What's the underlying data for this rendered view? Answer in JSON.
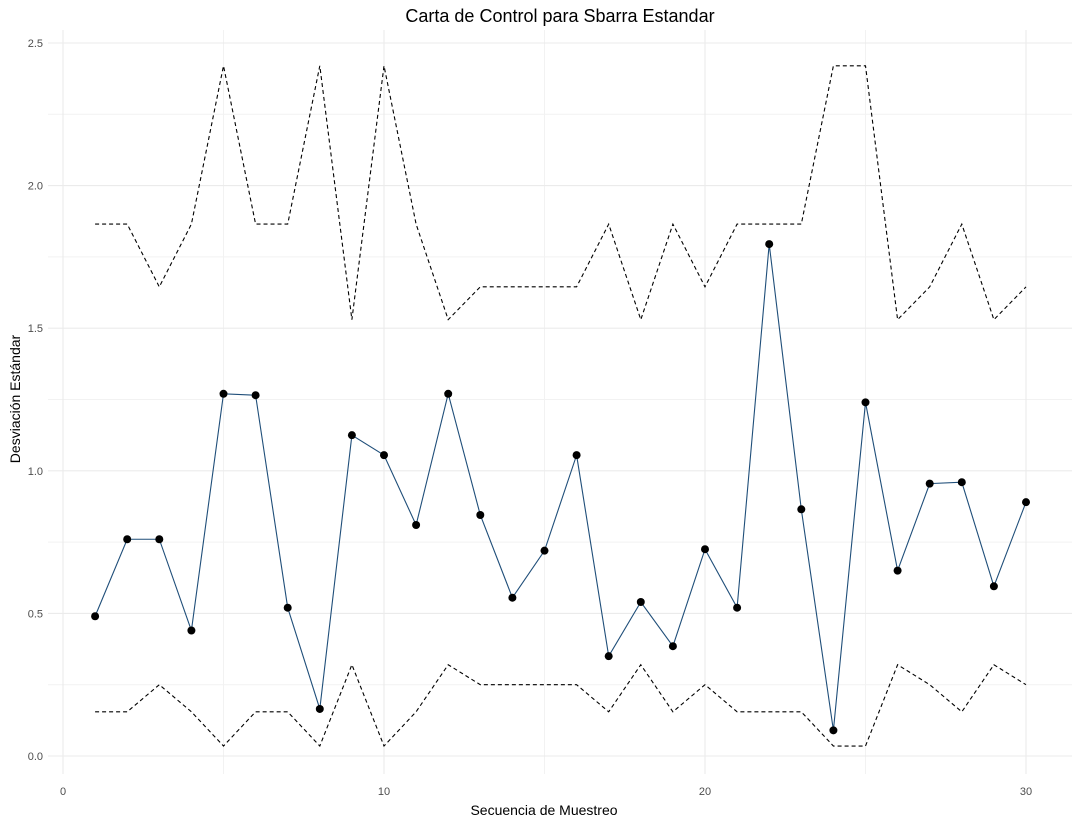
{
  "chart_data": {
    "type": "line",
    "title": "Carta de Control para Sbarra Estandar",
    "xlabel": "Secuencia de Muestreo",
    "ylabel": "Desviación Estándar",
    "xlim": [
      0,
      31
    ],
    "ylim": [
      0,
      2.52
    ],
    "x_ticks": [
      0,
      10,
      20,
      30
    ],
    "x_tick_labels": [
      "0",
      "10",
      "20",
      "30"
    ],
    "y_ticks": [
      0,
      0.5,
      1,
      1.5,
      2,
      2.5
    ],
    "y_tick_labels": [
      "0.0",
      "0.5",
      "1.0",
      "1.5",
      "2.0",
      "2.5"
    ],
    "grid": true,
    "legend": "none",
    "x": [
      1,
      2,
      3,
      4,
      5,
      6,
      7,
      8,
      9,
      10,
      11,
      12,
      13,
      14,
      15,
      16,
      17,
      18,
      19,
      20,
      21,
      22,
      23,
      24,
      25,
      26,
      27,
      28,
      29,
      30
    ],
    "series": [
      {
        "role": "data",
        "style": "solid",
        "color": "#1f4e79",
        "marker_color": "#000000",
        "values": [
          0.49,
          0.76,
          0.76,
          0.44,
          1.27,
          1.265,
          0.52,
          0.165,
          1.125,
          1.055,
          0.81,
          1.27,
          0.845,
          0.555,
          0.72,
          1.055,
          0.35,
          0.54,
          0.385,
          0.725,
          0.52,
          1.795,
          0.865,
          0.09,
          1.24,
          0.65,
          0.955,
          0.96,
          0.595,
          0.89
        ]
      },
      {
        "role": "upper_limit",
        "style": "dashed",
        "color": "#000000",
        "values": [
          1.865,
          1.865,
          1.645,
          1.865,
          2.42,
          1.865,
          1.865,
          2.42,
          1.53,
          2.42,
          1.865,
          1.53,
          1.645,
          1.645,
          1.645,
          1.645,
          1.865,
          1.53,
          1.865,
          1.645,
          1.865,
          1.865,
          1.865,
          2.42,
          2.42,
          1.53,
          1.645,
          1.865,
          1.53,
          1.645
        ]
      },
      {
        "role": "lower_limit",
        "style": "dashed",
        "color": "#000000",
        "values": [
          0.155,
          0.155,
          0.25,
          0.155,
          0.035,
          0.155,
          0.155,
          0.035,
          0.32,
          0.035,
          0.155,
          0.32,
          0.25,
          0.25,
          0.25,
          0.25,
          0.155,
          0.32,
          0.155,
          0.25,
          0.155,
          0.155,
          0.155,
          0.035,
          0.035,
          0.32,
          0.25,
          0.155,
          0.32,
          0.25
        ]
      }
    ]
  }
}
